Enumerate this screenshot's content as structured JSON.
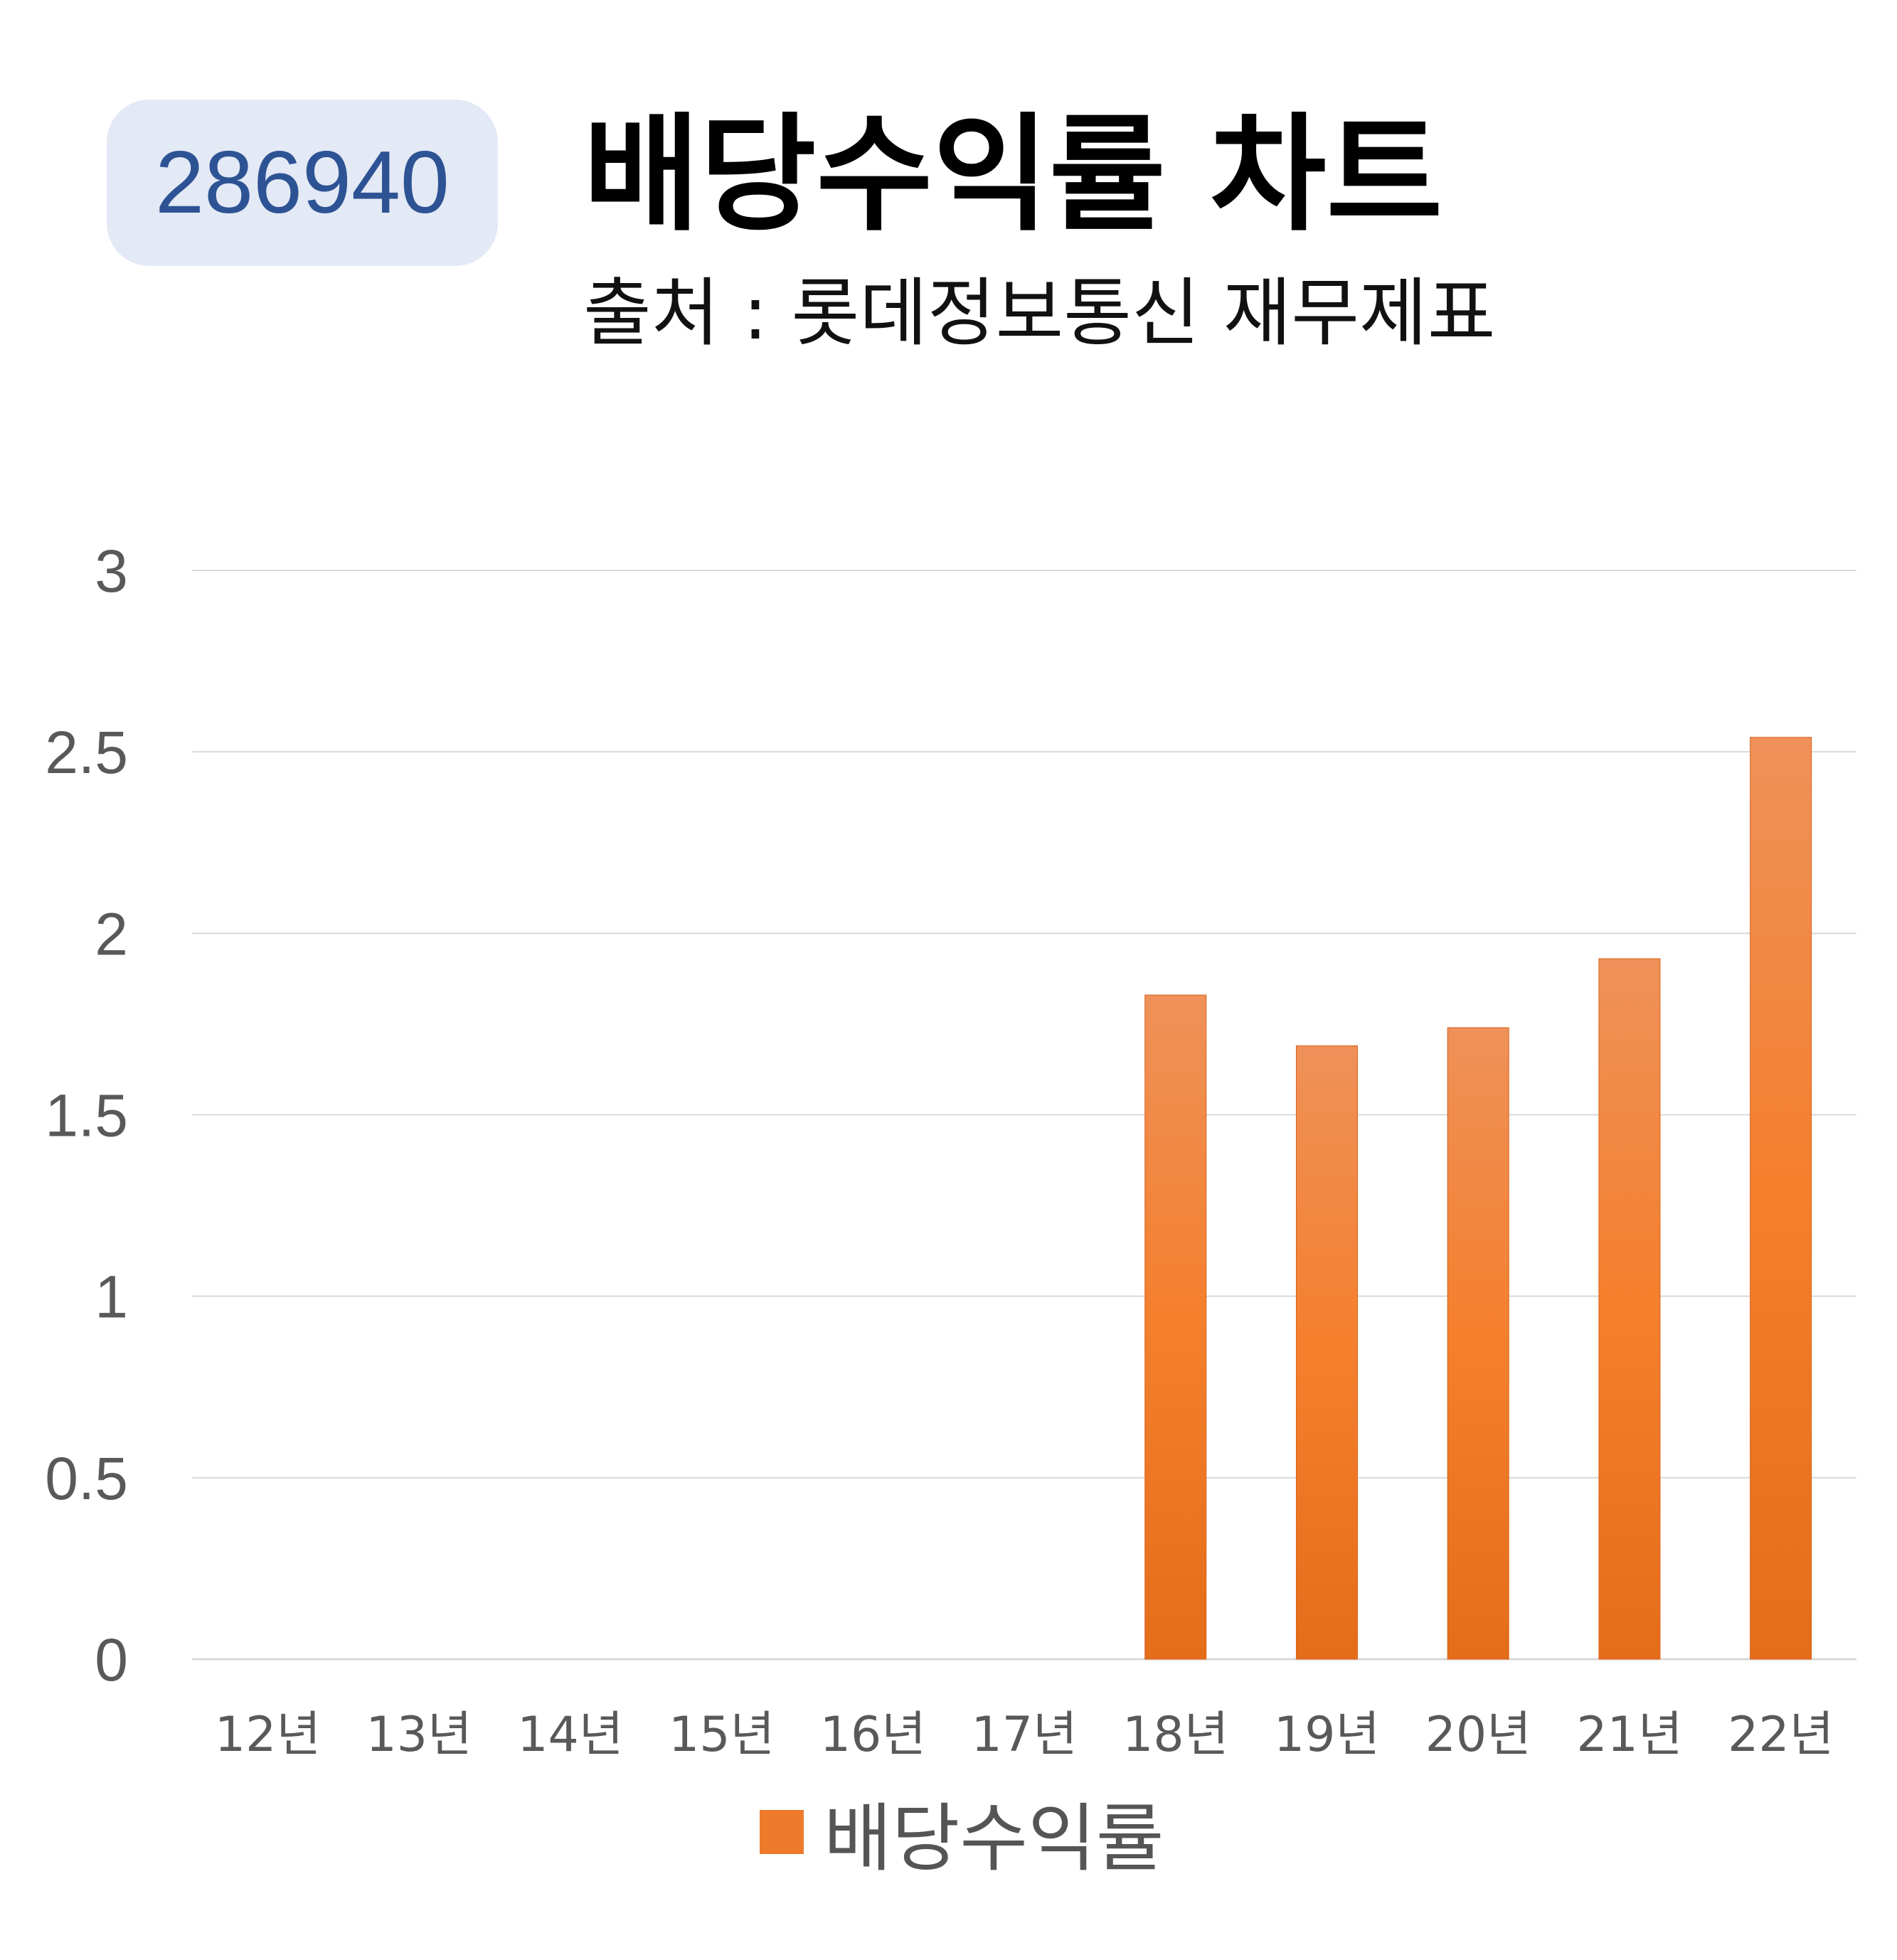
{
  "header": {
    "code": "286940",
    "title": "배당수익률 차트",
    "subtitle": "출처 : 롯데정보통신 재무제표"
  },
  "colors": {
    "badge_bg": "#e3e9f5",
    "badge_text": "#2d5394",
    "bar_top": "#ef9159",
    "bar_mid": "#f47f2c",
    "bar_bottom": "#e46d1a",
    "grid": "#d9d9d9",
    "axis_text": "#595959"
  },
  "chart_data": {
    "type": "bar",
    "categories": [
      "12년",
      "13년",
      "14년",
      "15년",
      "16년",
      "17년",
      "18년",
      "19년",
      "20년",
      "21년",
      "22년"
    ],
    "series": [
      {
        "name": "배당수익률",
        "values": [
          0,
          0,
          0,
          0,
          0,
          0,
          1.83,
          1.69,
          1.74,
          1.93,
          2.54
        ]
      }
    ],
    "yticks": [
      "0",
      "0.5",
      "1",
      "1.5",
      "2",
      "2.5",
      "3"
    ],
    "ylim": [
      0,
      3
    ],
    "grid": true,
    "legend": "bottom"
  }
}
